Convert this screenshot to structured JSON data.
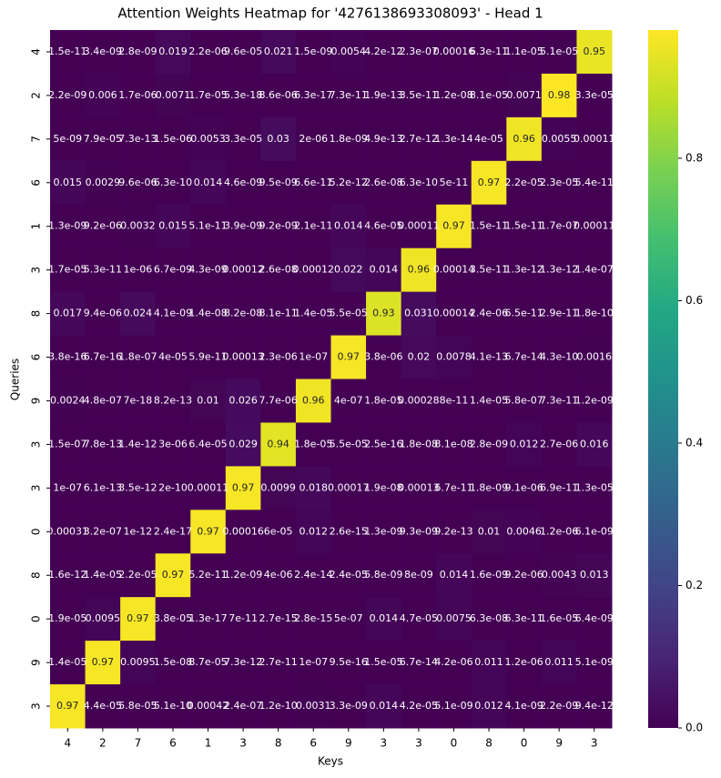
{
  "chart_data": {
    "type": "heatmap",
    "title": "Attention Weights Heatmap for '4276138693308093' - Head 1",
    "x_label": "Keys",
    "y_label": "Queries",
    "x_categories": [
      "4",
      "2",
      "7",
      "6",
      "1",
      "3",
      "8",
      "6",
      "9",
      "3",
      "3",
      "0",
      "8",
      "0",
      "9",
      "3"
    ],
    "y_categories": [
      "4",
      "2",
      "7",
      "6",
      "1",
      "3",
      "8",
      "6",
      "9",
      "3",
      "3",
      "0",
      "8",
      "0",
      "9",
      "3"
    ],
    "colormap": "viridis",
    "clim": [
      0,
      0.98
    ],
    "cticks": [
      {
        "value": 0,
        "label": "0.0"
      },
      {
        "value": 0.2,
        "label": "0.2"
      },
      {
        "value": 0.4,
        "label": "0.4"
      },
      {
        "value": 0.6,
        "label": "0.6"
      },
      {
        "value": 0.8,
        "label": "0.8"
      }
    ],
    "values": [
      [
        1.5e-11,
        3.4e-09,
        2.8e-09,
        0.019,
        2.2e-06,
        9.6e-05,
        0.021,
        1.5e-09,
        0.0054,
        4.2e-12,
        2.3e-07,
        0.00016,
        6.3e-11,
        1.1e-05,
        5.1e-05,
        0.95
      ],
      [
        2.2e-09,
        0.006,
        1.7e-06,
        0.0071,
        1.7e-05,
        5.3e-18,
        8.6e-06,
        6.3e-17,
        7.3e-11,
        1.9e-13,
        3.5e-11,
        1.2e-08,
        8.1e-05,
        0.0071,
        0.98,
        3.3e-05
      ],
      [
        5e-09,
        7.9e-05,
        7.3e-13,
        1.5e-06,
        0.0053,
        3.3e-05,
        0.03,
        2e-06,
        1.8e-09,
        4.9e-13,
        2.7e-12,
        1.3e-14,
        4e-05,
        0.96,
        0.0055,
        0.00011
      ],
      [
        0.015,
        0.0029,
        9.6e-06,
        6.3e-10,
        0.014,
        4.6e-09,
        9.5e-09,
        6.6e-11,
        5.2e-12,
        2.6e-08,
        6.3e-10,
        5e-11,
        0.97,
        2.2e-05,
        2.3e-05,
        5.4e-11
      ],
      [
        1.3e-09,
        9.2e-06,
        0.0032,
        0.015,
        5.1e-11,
        3.9e-09,
        9.2e-09,
        2.1e-11,
        0.014,
        4.6e-05,
        0.00011,
        0.97,
        1.5e-11,
        1.5e-11,
        1.7e-07,
        0.00011
      ],
      [
        1.7e-05,
        5.3e-11,
        1e-06,
        6.7e-09,
        4.3e-09,
        0.00012,
        2.6e-08,
        0.00012,
        0.022,
        0.014,
        0.96,
        0.00014,
        3.5e-11,
        1.3e-12,
        1.3e-12,
        1.4e-07
      ],
      [
        0.017,
        9.4e-06,
        0.024,
        4.1e-09,
        1.4e-08,
        8.2e-08,
        8.1e-11,
        1.4e-05,
        5.5e-05,
        0.93,
        0.031,
        0.00014,
        2.4e-06,
        6.5e-11,
        2.9e-11,
        1.8e-10
      ],
      [
        3.8e-16,
        6.7e-16,
        1.8e-07,
        4e-05,
        5.9e-11,
        0.00013,
        2.3e-06,
        1e-07,
        0.97,
        3.8e-06,
        0.02,
        0.0078,
        4.1e-13,
        6.7e-14,
        4.3e-10,
        0.0016
      ],
      [
        0.0024,
        4.8e-07,
        7e-18,
        8.2e-13,
        0.01,
        0.026,
        7.7e-06,
        0.96,
        4e-07,
        1.8e-05,
        0.00028,
        8e-11,
        1.4e-05,
        5.8e-07,
        7.3e-11,
        1.2e-09
      ],
      [
        1.5e-07,
        7.8e-13,
        1.4e-12,
        3e-06,
        6.4e-05,
        0.029,
        0.94,
        1.8e-05,
        5.5e-05,
        2.5e-16,
        1.8e-08,
        8.1e-08,
        2.8e-09,
        0.012,
        2.7e-06,
        0.016
      ],
      [
        1e-07,
        6.1e-13,
        3.5e-12,
        2e-10,
        0.00011,
        0.97,
        0.0099,
        0.018,
        0.00017,
        1.9e-08,
        0.00013,
        6.7e-11,
        1.8e-09,
        9.1e-06,
        6.9e-11,
        1.3e-05
      ],
      [
        0.00031,
        3.2e-07,
        1e-12,
        2.4e-17,
        0.97,
        0.00016,
        6e-05,
        0.012,
        2.6e-15,
        1.3e-09,
        9.3e-09,
        9.2e-13,
        0.01,
        0.0046,
        1.2e-06,
        6.1e-09
      ],
      [
        1.6e-12,
        1.4e-05,
        2.2e-05,
        0.97,
        5.2e-11,
        1.2e-09,
        4e-06,
        2.4e-14,
        2.4e-05,
        5.8e-09,
        8e-09,
        0.014,
        1.6e-09,
        9.2e-06,
        0.0043,
        0.013
      ],
      [
        1.9e-05,
        0.0095,
        0.97,
        3.8e-05,
        1.3e-17,
        7e-11,
        2.7e-15,
        2.8e-15,
        5e-07,
        0.014,
        4.7e-05,
        0.0075,
        6.3e-08,
        6.3e-11,
        1.6e-05,
        6.4e-09
      ],
      [
        1.4e-05,
        0.97,
        0.0095,
        1.5e-08,
        8.7e-05,
        7.3e-12,
        2.7e-11,
        1e-07,
        9.5e-16,
        1.5e-05,
        6.7e-14,
        4.2e-06,
        0.011,
        1.2e-06,
        0.011,
        5.1e-09
      ],
      [
        0.97,
        4.4e-05,
        5.8e-05,
        5.1e-10,
        0.00042,
        2.4e-07,
        1.2e-10,
        0.0031,
        3.3e-09,
        0.014,
        4.2e-05,
        5.1e-09,
        0.012,
        4.1e-09,
        2.2e-09,
        9.4e-12
      ]
    ],
    "value_labels": [
      [
        "1.5e-11",
        "3.4e-09",
        "2.8e-09",
        "0.019",
        "2.2e-06",
        "9.6e-05",
        "0.021",
        "1.5e-09",
        "0.0054",
        "4.2e-12",
        "2.3e-07",
        "0.00016",
        "6.3e-11",
        "1.1e-05",
        "5.1e-05",
        "0.95"
      ],
      [
        "2.2e-09",
        "0.006",
        "1.7e-06",
        "0.0071",
        "1.7e-05",
        "5.3e-18",
        "8.6e-06",
        "6.3e-17",
        "7.3e-11",
        "1.9e-13",
        "3.5e-11",
        "1.2e-08",
        "8.1e-05",
        "0.0071",
        "0.98",
        "3.3e-05"
      ],
      [
        "5e-09",
        "7.9e-05",
        "7.3e-13",
        "1.5e-06",
        "0.0053",
        "3.3e-05",
        "0.03",
        "2e-06",
        "1.8e-09",
        "4.9e-13",
        "2.7e-12",
        "1.3e-14",
        "4e-05",
        "0.96",
        "0.0055",
        "0.00011"
      ],
      [
        "0.015",
        "0.0029",
        "9.6e-06",
        "6.3e-10",
        "0.014",
        "4.6e-09",
        "9.5e-09",
        "6.6e-11",
        "5.2e-12",
        "2.6e-08",
        "6.3e-10",
        "5e-11",
        "0.97",
        "2.2e-05",
        "2.3e-05",
        "5.4e-11"
      ],
      [
        "1.3e-09",
        "9.2e-06",
        "0.0032",
        "0.015",
        "5.1e-11",
        "3.9e-09",
        "9.2e-09",
        "2.1e-11",
        "0.014",
        "4.6e-05",
        "0.00011",
        "0.97",
        "1.5e-11",
        "1.5e-11",
        "1.7e-07",
        "0.00011"
      ],
      [
        "1.7e-05",
        "5.3e-11",
        "1e-06",
        "6.7e-09",
        "4.3e-09",
        "0.00012",
        "2.6e-08",
        "0.00012",
        "0.022",
        "0.014",
        "0.96",
        "0.00014",
        "3.5e-11",
        "1.3e-12",
        "1.3e-12",
        "1.4e-07"
      ],
      [
        "0.017",
        "9.4e-06",
        "0.024",
        "4.1e-09",
        "1.4e-08",
        "8.2e-08",
        "8.1e-11",
        "1.4e-05",
        "5.5e-05",
        "0.93",
        "0.031",
        "0.00014",
        "2.4e-06",
        "6.5e-11",
        "2.9e-11",
        "1.8e-10"
      ],
      [
        "3.8e-16",
        "6.7e-16",
        "1.8e-07",
        "4e-05",
        "5.9e-11",
        "0.00013",
        "2.3e-06",
        "1e-07",
        "0.97",
        "3.8e-06",
        "0.02",
        "0.0078",
        "4.1e-13",
        "6.7e-14",
        "4.3e-10",
        "0.0016"
      ],
      [
        "0.0024",
        "4.8e-07",
        "7e-18",
        "8.2e-13",
        "0.01",
        "0.026",
        "7.7e-06",
        "0.96",
        "4e-07",
        "1.8e-05",
        "0.00028",
        "8e-11",
        "1.4e-05",
        "5.8e-07",
        "7.3e-11",
        "1.2e-09"
      ],
      [
        "1.5e-07",
        "7.8e-13",
        "1.4e-12",
        "3e-06",
        "6.4e-05",
        "0.029",
        "0.94",
        "1.8e-05",
        "5.5e-05",
        "2.5e-16",
        "1.8e-08",
        "8.1e-08",
        "2.8e-09",
        "0.012",
        "2.7e-06",
        "0.016"
      ],
      [
        "1e-07",
        "6.1e-13",
        "3.5e-12",
        "2e-10",
        "0.00011",
        "0.97",
        "0.0099",
        "0.018",
        "0.00017",
        "1.9e-08",
        "0.00013",
        "6.7e-11",
        "1.8e-09",
        "9.1e-06",
        "6.9e-11",
        "1.3e-05"
      ],
      [
        "0.00031",
        "3.2e-07",
        "1e-12",
        "2.4e-17",
        "0.97",
        "0.00016",
        "6e-05",
        "0.012",
        "2.6e-15",
        "1.3e-09",
        "9.3e-09",
        "9.2e-13",
        "0.01",
        "0.0046",
        "1.2e-06",
        "6.1e-09"
      ],
      [
        "1.6e-12",
        "1.4e-05",
        "2.2e-05",
        "0.97",
        "5.2e-11",
        "1.2e-09",
        "4e-06",
        "2.4e-14",
        "2.4e-05",
        "5.8e-09",
        "8e-09",
        "0.014",
        "1.6e-09",
        "9.2e-06",
        "0.0043",
        "0.013"
      ],
      [
        "1.9e-05",
        "0.0095",
        "0.97",
        "3.8e-05",
        "1.3e-17",
        "7e-11",
        "2.7e-15",
        "2.8e-15",
        "5e-07",
        "0.014",
        "4.7e-05",
        "0.0075",
        "6.3e-08",
        "6.3e-11",
        "1.6e-05",
        "6.4e-09"
      ],
      [
        "1.4e-05",
        "0.97",
        "0.0095",
        "1.5e-08",
        "8.7e-05",
        "7.3e-12",
        "2.7e-11",
        "1e-07",
        "9.5e-16",
        "1.5e-05",
        "6.7e-14",
        "4.2e-06",
        "0.011",
        "1.2e-06",
        "0.011",
        "5.1e-09"
      ],
      [
        "0.97",
        "4.4e-05",
        "5.8e-05",
        "5.1e-10",
        "0.00042",
        "2.4e-07",
        "1.2e-10",
        "0.0031",
        "3.3e-09",
        "0.014",
        "4.2e-05",
        "5.1e-09",
        "0.012",
        "4.1e-09",
        "2.2e-09",
        "9.4e-12"
      ]
    ]
  }
}
